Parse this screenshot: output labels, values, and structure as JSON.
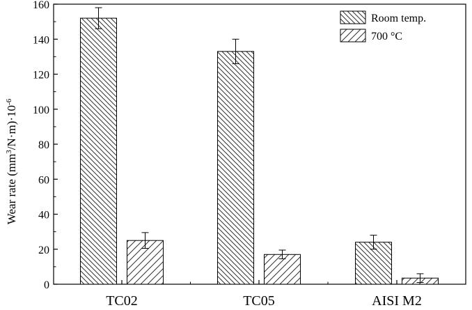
{
  "chart_data": {
    "type": "bar",
    "title": "",
    "categories": [
      "TC02",
      "TC05",
      "AISI M2"
    ],
    "series": [
      {
        "name": "Room temp.",
        "values": [
          152,
          133,
          24
        ],
        "errors": [
          6,
          7,
          4
        ],
        "pattern": "backslash-hatch"
      },
      {
        "name": "700 °C",
        "values": [
          25,
          17,
          3.5
        ],
        "errors": [
          4.5,
          2.5,
          2.5
        ],
        "pattern": "slash-hatch"
      }
    ],
    "ylabel": {
      "base": "Wear rate (mm",
      "sup1": "3",
      "mid": "/N·m)·10",
      "sup2": "-6"
    },
    "xlabel": "",
    "ylim": [
      0,
      160
    ],
    "yticks": [
      0,
      20,
      40,
      60,
      80,
      100,
      120,
      140,
      160
    ],
    "legend_position": "top-right",
    "grid": false,
    "colors": {
      "bar_fill": "#ffffff",
      "stroke": "#000000",
      "hatch": "#333333"
    }
  }
}
